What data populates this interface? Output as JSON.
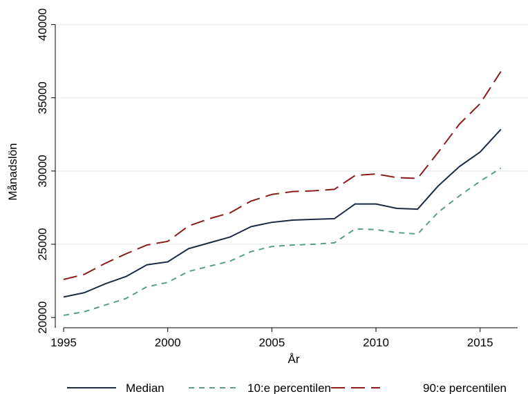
{
  "chart_data": {
    "type": "line",
    "title": "",
    "xlabel": "År",
    "ylabel": "Månadslön",
    "xlim": [
      1994.6,
      2017.3
    ],
    "ylim": [
      19300,
      40500
    ],
    "x_ticks": [
      1995,
      2000,
      2005,
      2010,
      2015
    ],
    "y_ticks": [
      20000,
      25000,
      30000,
      35000,
      40000
    ],
    "grid": true,
    "legend_position": "bottom",
    "x": [
      1995,
      1996,
      1997,
      1998,
      1999,
      2000,
      2001,
      2002,
      2003,
      2004,
      2005,
      2006,
      2007,
      2008,
      2009,
      2010,
      2011,
      2012,
      2013,
      2014,
      2015,
      2016
    ],
    "series": [
      {
        "name": "Median",
        "color": "#1a2a40",
        "dash": "solid",
        "values": [
          21400,
          21700,
          22300,
          22800,
          23600,
          23800,
          24700,
          25100,
          25500,
          26200,
          26500,
          26650,
          26700,
          26750,
          27750,
          27750,
          27450,
          27400,
          29000,
          30300,
          31300,
          32850
        ]
      },
      {
        "name": "10:e percentilen",
        "color": "#5a9e80",
        "dash": "short",
        "values": [
          20150,
          20400,
          20850,
          21300,
          22100,
          22400,
          23150,
          23500,
          23850,
          24500,
          24850,
          24950,
          25000,
          25100,
          26050,
          26000,
          25800,
          25700,
          27200,
          28300,
          29300,
          30200
        ]
      },
      {
        "name": "90:e percentilen",
        "color": "#8b1a1a",
        "dash": "long",
        "values": [
          22600,
          22950,
          23700,
          24350,
          24950,
          25200,
          26250,
          26750,
          27150,
          27950,
          28400,
          28600,
          28650,
          28750,
          29700,
          29800,
          29550,
          29500,
          31300,
          33200,
          34600,
          36800
        ]
      }
    ]
  }
}
